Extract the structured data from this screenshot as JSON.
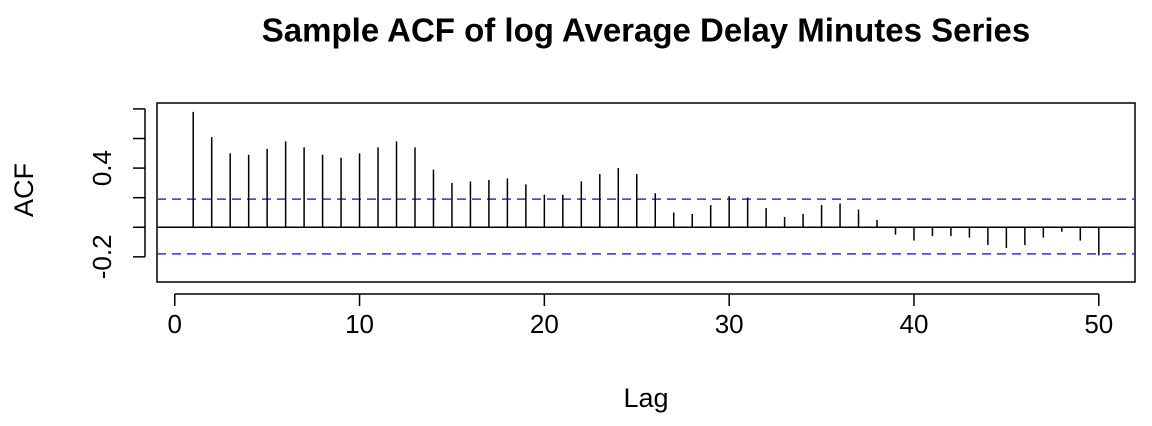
{
  "chart_data": {
    "type": "acf",
    "title": "Sample ACF of log Average Delay Minutes Series",
    "xlabel": "Lag",
    "ylabel": "ACF",
    "x": [
      1,
      2,
      3,
      4,
      5,
      6,
      7,
      8,
      9,
      10,
      11,
      12,
      13,
      14,
      15,
      16,
      17,
      18,
      19,
      20,
      21,
      22,
      23,
      24,
      25,
      26,
      27,
      28,
      29,
      30,
      31,
      32,
      33,
      34,
      35,
      36,
      37,
      38,
      39,
      40,
      41,
      42,
      43,
      44,
      45,
      46,
      47,
      48,
      49,
      50
    ],
    "values": [
      0.78,
      0.61,
      0.5,
      0.49,
      0.53,
      0.58,
      0.54,
      0.49,
      0.47,
      0.5,
      0.54,
      0.58,
      0.54,
      0.39,
      0.3,
      0.31,
      0.32,
      0.33,
      0.29,
      0.22,
      0.22,
      0.31,
      0.36,
      0.4,
      0.36,
      0.23,
      0.1,
      0.09,
      0.15,
      0.21,
      0.2,
      0.13,
      0.07,
      0.09,
      0.15,
      0.16,
      0.12,
      0.05,
      -0.05,
      -0.09,
      -0.06,
      -0.06,
      -0.07,
      -0.12,
      -0.14,
      -0.12,
      -0.07,
      -0.03,
      -0.09,
      -0.19
    ],
    "color": "#000000",
    "ci_lines": [
      0.19,
      -0.18
    ],
    "ci_color": "#2233ee",
    "xlim": [
      -0.96,
      51.96
    ],
    "ylim": [
      -0.37,
      0.84
    ],
    "xticks": [
      0,
      10,
      20,
      30,
      40,
      50
    ],
    "yticks": [
      -0.2,
      0.4
    ],
    "ytick_marks": [
      -0.2,
      0,
      0.2,
      0.4,
      0.6,
      0.8
    ]
  }
}
